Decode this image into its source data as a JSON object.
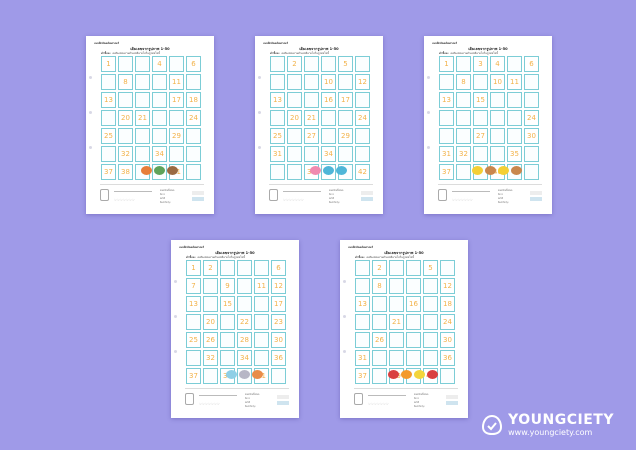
{
  "brand_text": "แบบฝึกหัดคณิตศาสตร์",
  "sheet_title": "เติมเลขจากรูปภาพ 1-50",
  "instruction_label": "คำชี้แจง",
  "instruction_text": "ลงสีลงช่องตามตัวเลขที่หายไปในรูปต่อไปนี้",
  "footer_hearts": "♡♡♡♡♡♡♡",
  "footer_checks": [
    "ยอดเยี่ยมทั้งหมด",
    "ดีมาก",
    "พอใช้",
    "ต้องปรับปรุง"
  ],
  "logo": {
    "name": "YOUNGCIETY",
    "url": "www.youngciety.com"
  },
  "sheets": [
    {
      "cells": [
        "1",
        "",
        "",
        "4",
        "",
        "6",
        "",
        "8",
        "",
        "",
        "11",
        "",
        "13",
        "",
        "",
        "",
        "17",
        "18",
        "",
        "20",
        "21",
        "",
        "",
        "24",
        "25",
        "",
        "",
        "",
        "29",
        "",
        "",
        "32",
        "",
        "34",
        "",
        "",
        "37",
        "38",
        "",
        "",
        "41",
        "",
        "43",
        "",
        "",
        "46",
        "",
        "48",
        "",
        "",
        "",
        "",
        "",
        ""
      ],
      "pictures": [
        "fox",
        "turtle",
        "dog"
      ]
    },
    {
      "cells": [
        "",
        "2",
        "",
        "",
        "5",
        "",
        "",
        "",
        "",
        "10",
        "",
        "12",
        "13",
        "",
        "",
        "16",
        "17",
        "",
        "",
        "20",
        "21",
        "",
        "",
        "24",
        "25",
        "",
        "27",
        "",
        "29",
        "",
        "31",
        "",
        "",
        "34",
        "",
        "",
        "",
        "",
        "39",
        "40",
        "",
        "42",
        "43",
        "",
        "45",
        "",
        "",
        "48",
        "49",
        "",
        "",
        "",
        "",
        ""
      ],
      "pictures": [
        "flower",
        "fish",
        "fish"
      ]
    },
    {
      "cells": [
        "1",
        "",
        "3",
        "4",
        "",
        "6",
        "",
        "8",
        "",
        "10",
        "11",
        "",
        "13",
        "",
        "15",
        "",
        "",
        "",
        "",
        "",
        "",
        "",
        "",
        "24",
        "",
        "",
        "27",
        "",
        "",
        "30",
        "31",
        "32",
        "",
        "",
        "35",
        "",
        "37",
        "",
        "",
        "40",
        "",
        "",
        "",
        "",
        "45",
        "",
        "",
        "48",
        "49",
        "50",
        "",
        "",
        "",
        ""
      ],
      "pictures": [
        "banana",
        "bread",
        "banana",
        "bread"
      ]
    },
    {
      "cells": [
        "1",
        "2",
        "",
        "",
        "",
        "6",
        "7",
        "",
        "9",
        "",
        "11",
        "12",
        "13",
        "",
        "15",
        "",
        "",
        "17",
        "",
        "20",
        "",
        "22",
        "",
        "23",
        "25",
        "26",
        "",
        "28",
        "",
        "30",
        "",
        "32",
        "",
        "34",
        "",
        "36",
        "37",
        "",
        "39",
        "",
        "41",
        "",
        "43",
        "",
        "",
        "",
        "47",
        "48",
        "49",
        "",
        "",
        "",
        "",
        ""
      ],
      "pictures": [
        "icecream",
        "shell",
        "cat"
      ]
    },
    {
      "cells": [
        "",
        "2",
        "",
        "",
        "5",
        "",
        "",
        "8",
        "",
        "",
        "",
        "12",
        "13",
        "",
        "",
        "16",
        "",
        "18",
        "",
        "",
        "21",
        "",
        "",
        "24",
        "",
        "26",
        "",
        "",
        "",
        "30",
        "31",
        "",
        "",
        "",
        "",
        "36",
        "37",
        "",
        "39",
        "",
        "41",
        "",
        "43",
        "",
        "",
        "",
        "",
        "48",
        "",
        "50",
        "",
        "",
        "",
        ""
      ],
      "pictures": [
        "strawberry",
        "orange",
        "lemon",
        "strawberry"
      ]
    }
  ],
  "colors": {
    "background": "#9f9ae8",
    "number": "#f2b24a",
    "grid": "#7ccdd6"
  }
}
